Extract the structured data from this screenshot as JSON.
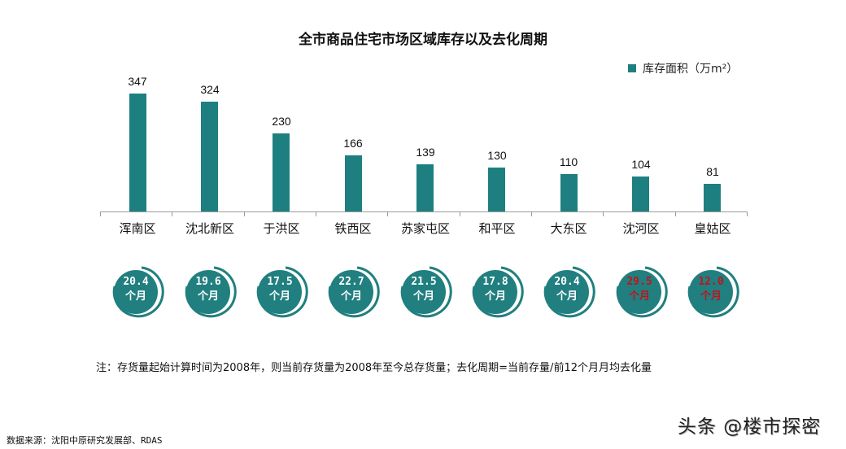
{
  "title": "全市商品住宅市场区域库存以及去化周期",
  "legend": {
    "label": "库存面积（万m²）",
    "color": "#1e7f80"
  },
  "chart_data": {
    "type": "bar",
    "title": "全市商品住宅市场区域库存以及去化周期",
    "xlabel": "",
    "ylabel": "库存面积（万m²）",
    "categories": [
      "浑南区",
      "沈北新区",
      "于洪区",
      "铁西区",
      "苏家屯区",
      "和平区",
      "大东区",
      "沈河区",
      "皇姑区"
    ],
    "series": [
      {
        "name": "库存面积（万m²）",
        "values": [
          347,
          324,
          230,
          166,
          139,
          130,
          110,
          104,
          81
        ]
      },
      {
        "name": "去化周期（个月）",
        "values": [
          20.4,
          19.6,
          17.5,
          22.7,
          21.5,
          17.8,
          20.4,
          29.5,
          12.0
        ]
      }
    ],
    "ylim": [
      0,
      350
    ],
    "grid": false,
    "legend_position": "top-right",
    "annotations": [
      "沈河区 29.5个月 and 皇姑区 12.0个月 highlighted in red"
    ]
  },
  "cycle_unit": "个月",
  "cycles": [
    {
      "value": "20.4",
      "highlight": false
    },
    {
      "value": "19.6",
      "highlight": false
    },
    {
      "value": "17.5",
      "highlight": false
    },
    {
      "value": "22.7",
      "highlight": false
    },
    {
      "value": "21.5",
      "highlight": false
    },
    {
      "value": "17.8",
      "highlight": false
    },
    {
      "value": "20.4",
      "highlight": false
    },
    {
      "value": "29.5",
      "highlight": true
    },
    {
      "value": "12.0",
      "highlight": true
    }
  ],
  "colors": {
    "bar": "#1e7f80",
    "badge": "#217f7f",
    "badge_text": "#ffffff",
    "highlight_text": "#c0141c"
  },
  "note": "注：存货量起始计算时间为2008年，则当前存货量为2008年至今总存货量；去化周期=当前存量/前12个月月均去化量",
  "source": "数据来源：沈阳中原研究发展部、RDAS",
  "watermark": "头条 @楼市探密"
}
